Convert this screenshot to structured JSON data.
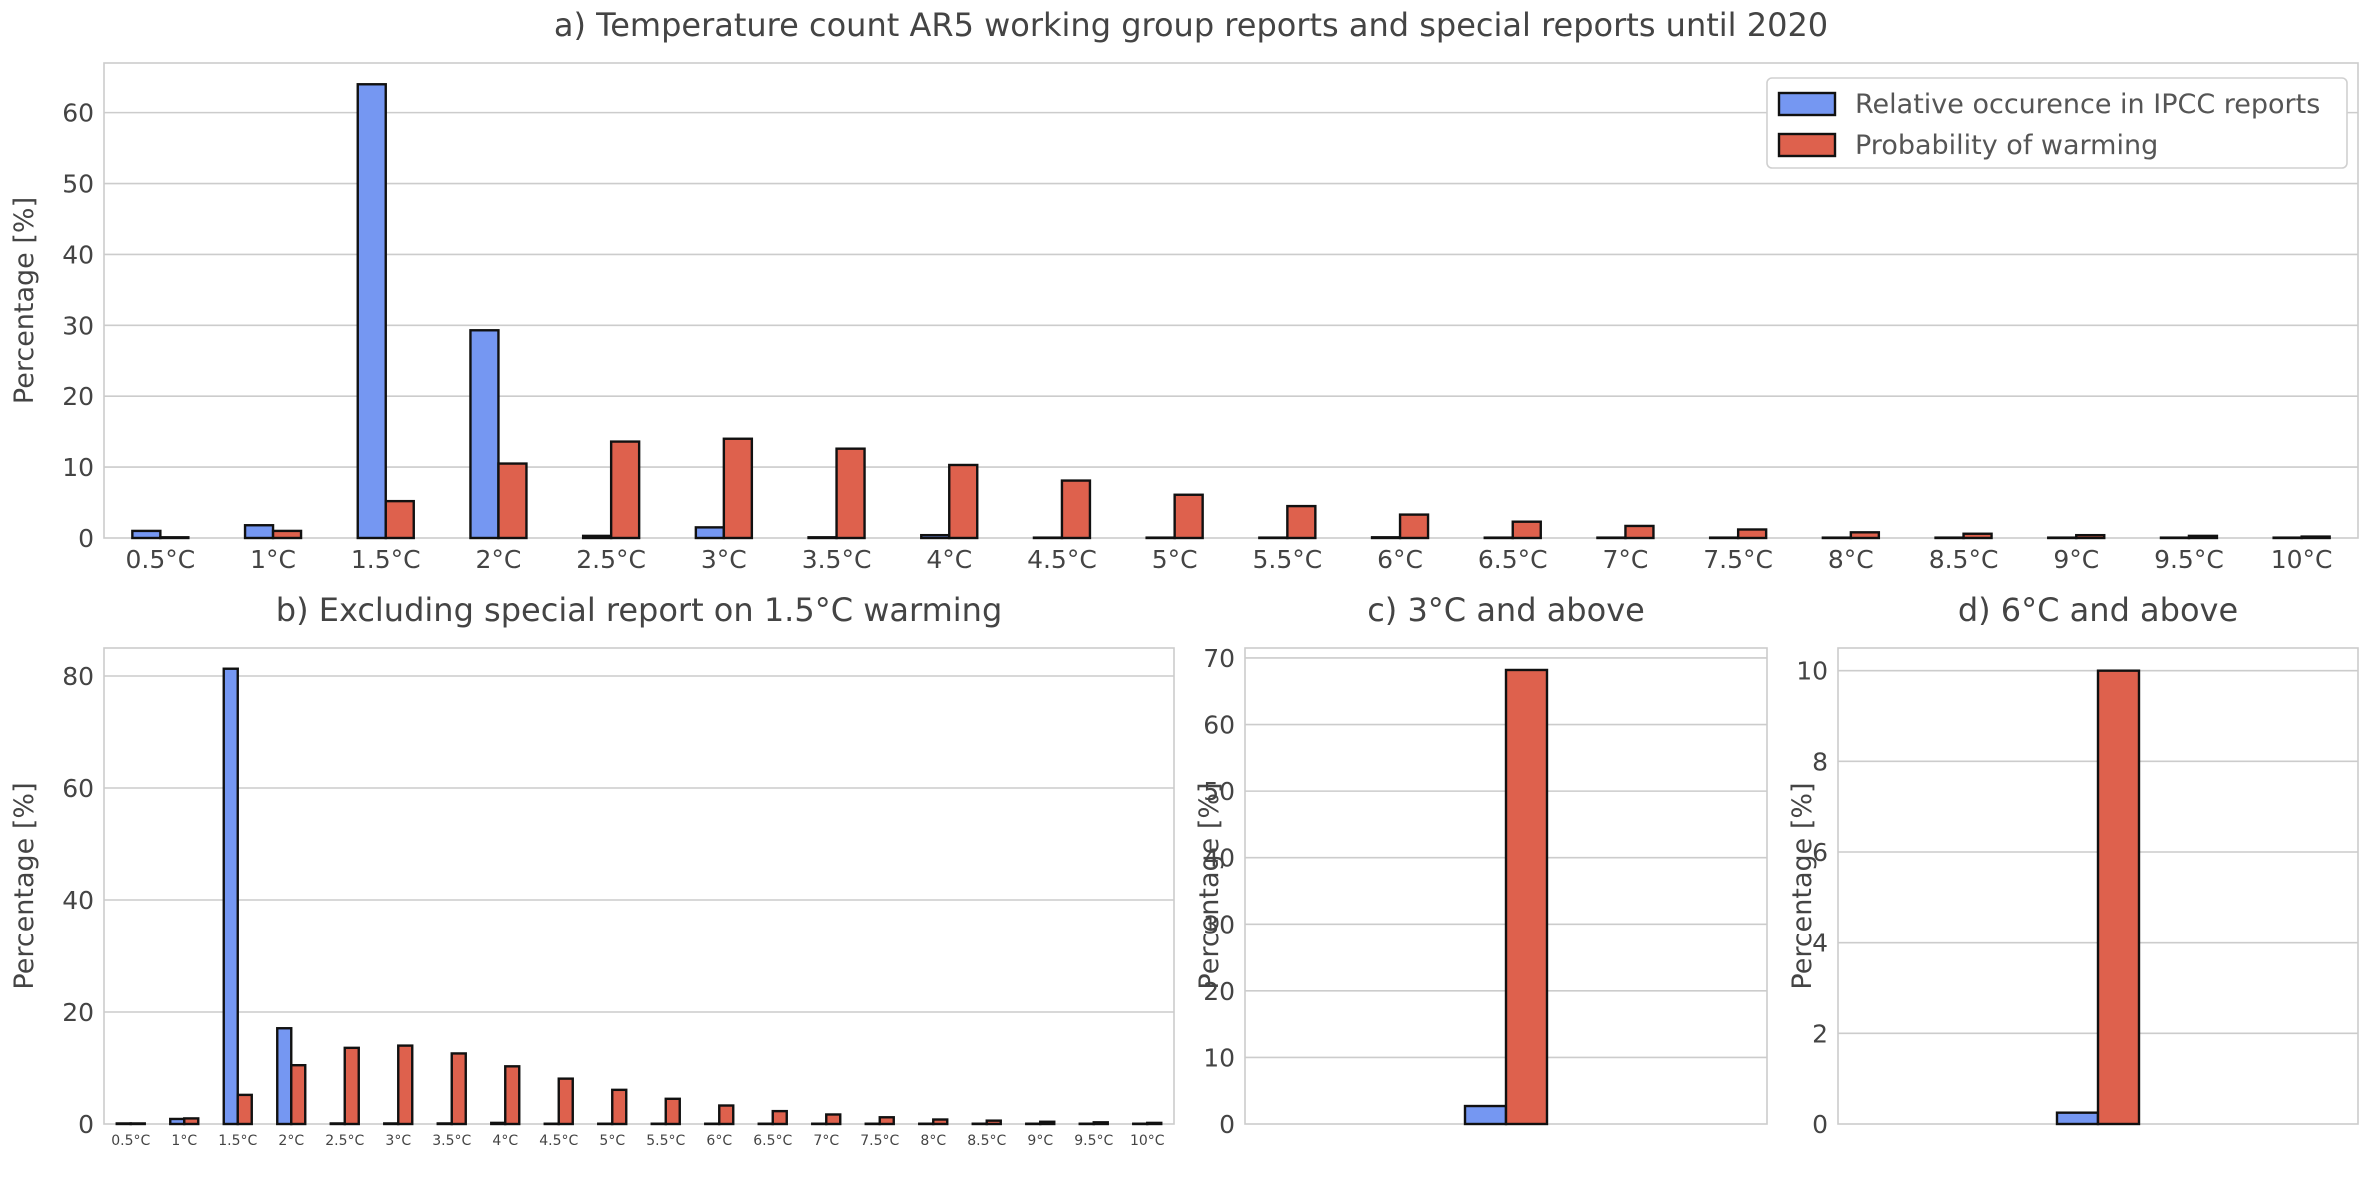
{
  "colors": {
    "ipcc": "#7597F2",
    "warming": "#DE614D",
    "grid": "#CCCCCC",
    "frame": "#CCCCCC",
    "text": "#444444",
    "legend_text": "#555555"
  },
  "legend": {
    "placement": "top-right",
    "entries": [
      "Relative occurence in IPCC reports",
      "Probability of warming"
    ]
  },
  "chart_data": [
    {
      "type": "bar",
      "title": "a) Temperature count AR5 working group reports and special reports until 2020",
      "xlabel": "",
      "ylabel": "Percentage [%]",
      "categories": [
        "0.5°C",
        "1°C",
        "1.5°C",
        "2°C",
        "2.5°C",
        "3°C",
        "3.5°C",
        "4°C",
        "4.5°C",
        "5°C",
        "5.5°C",
        "6°C",
        "6.5°C",
        "7°C",
        "7.5°C",
        "8°C",
        "8.5°C",
        "9°C",
        "9.5°C",
        "10°C"
      ],
      "series": [
        {
          "name": "Relative occurence in IPCC reports",
          "values": [
            1.0,
            1.8,
            64.0,
            29.3,
            0.3,
            1.5,
            0.1,
            0.4,
            0.05,
            0.05,
            0.05,
            0.1,
            0.05,
            0.05,
            0.05,
            0.05,
            0.05,
            0.05,
            0.05,
            0.05
          ]
        },
        {
          "name": "Probability of warming",
          "values": [
            0.1,
            1.0,
            5.2,
            10.5,
            13.6,
            14.0,
            12.6,
            10.3,
            8.1,
            6.1,
            4.5,
            3.3,
            2.3,
            1.7,
            1.2,
            0.8,
            0.6,
            0.4,
            0.3,
            0.2
          ]
        }
      ],
      "ylim": [
        0,
        67
      ],
      "yticks": [
        0,
        10,
        20,
        30,
        40,
        50,
        60
      ],
      "grid": true,
      "legend": "top-right"
    },
    {
      "type": "bar",
      "title": "b) Excluding special report on 1.5°C warming",
      "xlabel": "",
      "ylabel": "Percentage [%]",
      "categories": [
        "0.5°C",
        "1°C",
        "1.5°C",
        "2°C",
        "2.5°C",
        "3°C",
        "3.5°C",
        "4°C",
        "4.5°C",
        "5°C",
        "5.5°C",
        "6°C",
        "6.5°C",
        "7°C",
        "7.5°C",
        "8°C",
        "8.5°C",
        "9°C",
        "9.5°C",
        "10°C"
      ],
      "series": [
        {
          "name": "Relative occurence in IPCC reports",
          "values": [
            0.1,
            0.9,
            81.3,
            17.1,
            0.1,
            0.1,
            0.1,
            0.2,
            0.05,
            0.05,
            0.05,
            0.05,
            0.05,
            0.05,
            0.05,
            0.05,
            0.05,
            0.05,
            0.05,
            0.05
          ]
        },
        {
          "name": "Probability of warming",
          "values": [
            0.1,
            1.0,
            5.2,
            10.5,
            13.6,
            14.0,
            12.6,
            10.3,
            8.1,
            6.1,
            4.5,
            3.3,
            2.3,
            1.7,
            1.2,
            0.8,
            0.6,
            0.4,
            0.3,
            0.2
          ]
        }
      ],
      "ylim": [
        0,
        85
      ],
      "yticks": [
        0,
        20,
        40,
        60,
        80
      ],
      "grid": true
    },
    {
      "type": "bar",
      "title": "c) 3°C and above",
      "xlabel": "",
      "ylabel": "Percentage [%]",
      "categories": [
        ""
      ],
      "series": [
        {
          "name": "Relative occurence in IPCC reports",
          "values": [
            2.7
          ]
        },
        {
          "name": "Probability of warming",
          "values": [
            68.2
          ]
        }
      ],
      "ylim": [
        0,
        71.5
      ],
      "yticks": [
        0,
        10,
        20,
        30,
        40,
        50,
        60,
        70
      ],
      "grid": true
    },
    {
      "type": "bar",
      "title": "d) 6°C and above",
      "xlabel": "",
      "ylabel": "Percentage [%]",
      "categories": [
        ""
      ],
      "series": [
        {
          "name": "Relative occurence in IPCC reports",
          "values": [
            0.25
          ]
        },
        {
          "name": "Probability of warming",
          "values": [
            10.0
          ]
        }
      ],
      "ylim": [
        0,
        10.5
      ],
      "yticks": [
        0,
        2,
        4,
        6,
        8,
        10
      ],
      "grid": true
    }
  ]
}
